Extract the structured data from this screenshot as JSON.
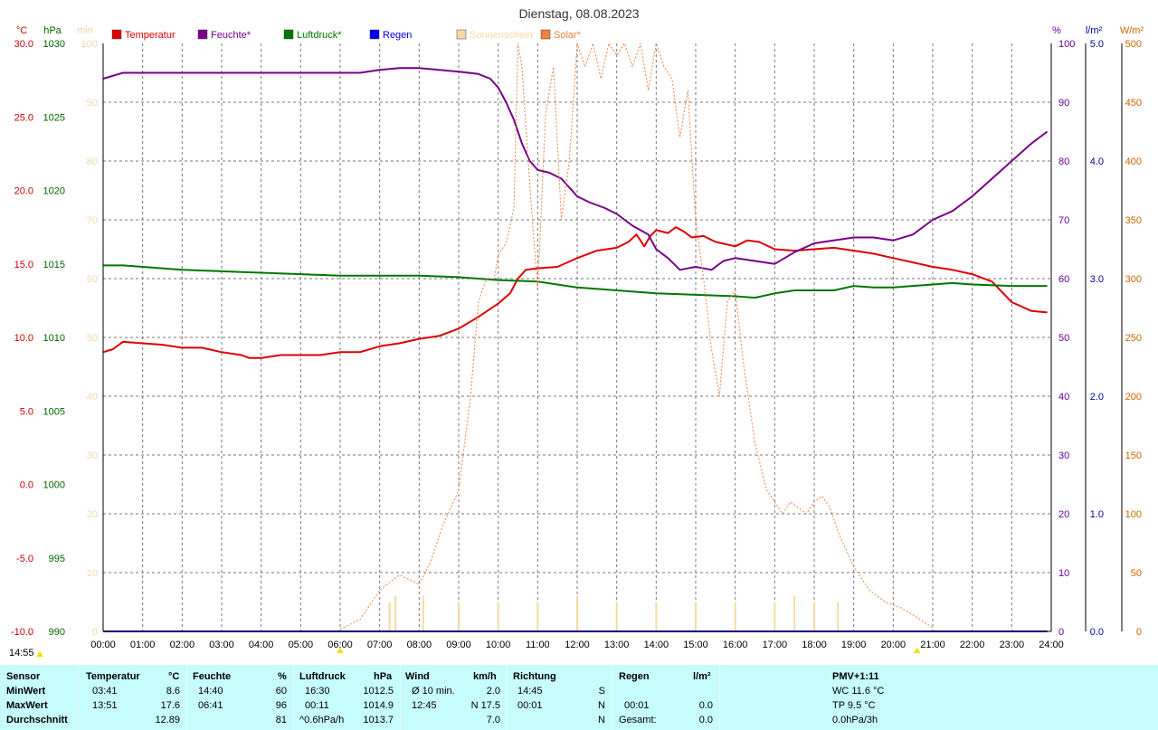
{
  "chart_data": {
    "type": "line",
    "title": "Dienstag, 08.08.2023",
    "x_ticks": [
      "00:00",
      "01:00",
      "02:00",
      "03:00",
      "04:00",
      "05:00",
      "06:00",
      "07:00",
      "08:00",
      "09:00",
      "10:00",
      "11:00",
      "12:00",
      "13:00",
      "14:00",
      "15:00",
      "16:00",
      "17:00",
      "18:00",
      "19:00",
      "20:00",
      "21:00",
      "22:00",
      "23:00",
      "24:00"
    ],
    "axes": {
      "temperature": {
        "unit": "°C",
        "color": "#cc0000",
        "min": -10,
        "max": 30,
        "ticks": [
          "30.0",
          "25.0",
          "20.0",
          "15.0",
          "10.0",
          "5.0",
          "0.0",
          "-5.0",
          "-10.0"
        ]
      },
      "pressure": {
        "unit": "hPa",
        "color": "#006600",
        "min": 990,
        "max": 1030,
        "ticks": [
          "1030",
          "1025",
          "1020",
          "1015",
          "1010",
          "1005",
          "1000",
          "995",
          "990"
        ]
      },
      "sunshine": {
        "unit": "min",
        "color": "#f0d8a8",
        "min": 0,
        "max": 100,
        "ticks": [
          "100",
          "90",
          "80",
          "70",
          "60",
          "50",
          "40",
          "30",
          "20",
          "10",
          "0"
        ]
      },
      "humidity": {
        "unit": "%",
        "color": "#660099",
        "min": 0,
        "max": 100,
        "ticks": [
          "100",
          "90",
          "80",
          "70",
          "60",
          "50",
          "40",
          "30",
          "20",
          "10",
          "0"
        ]
      },
      "rain": {
        "unit": "l/m²",
        "color": "#000099",
        "min": 0,
        "max": 5,
        "ticks": [
          "5.0",
          "4.0",
          "3.0",
          "2.0",
          "1.0",
          "0.0"
        ]
      },
      "solar": {
        "unit": "W/m²",
        "color": "#cc6600",
        "min": 0,
        "max": 500,
        "ticks": [
          "500",
          "450",
          "400",
          "350",
          "300",
          "250",
          "200",
          "150",
          "100",
          "50",
          "0"
        ]
      }
    },
    "legend": [
      {
        "label": "Temperatur",
        "color": "#dd0000"
      },
      {
        "label": "Feuchte*",
        "color": "#770088"
      },
      {
        "label": "Luftdruck*",
        "color": "#007700"
      },
      {
        "label": "Regen",
        "color": "#0000ee"
      },
      {
        "label": "Sonnenschein",
        "color": "#f8d8a0"
      },
      {
        "label": "Solar*",
        "color": "#f08040"
      }
    ],
    "series": [
      {
        "name": "Temperatur",
        "axis": "temperature",
        "color": "#dd0000",
        "points": [
          [
            0,
            9.0
          ],
          [
            0.25,
            9.2
          ],
          [
            0.5,
            9.7
          ],
          [
            1,
            9.6
          ],
          [
            1.5,
            9.5
          ],
          [
            2,
            9.3
          ],
          [
            2.5,
            9.3
          ],
          [
            3,
            9.0
          ],
          [
            3.5,
            8.8
          ],
          [
            3.7,
            8.6
          ],
          [
            4,
            8.6
          ],
          [
            4.5,
            8.8
          ],
          [
            5,
            8.8
          ],
          [
            5.5,
            8.8
          ],
          [
            6,
            9.0
          ],
          [
            6.5,
            9.0
          ],
          [
            7,
            9.4
          ],
          [
            7.5,
            9.6
          ],
          [
            8,
            9.9
          ],
          [
            8.5,
            10.1
          ],
          [
            9,
            10.6
          ],
          [
            9.5,
            11.4
          ],
          [
            10,
            12.3
          ],
          [
            10.3,
            13.0
          ],
          [
            10.5,
            14.0
          ],
          [
            10.7,
            14.6
          ],
          [
            11,
            14.7
          ],
          [
            11.5,
            14.8
          ],
          [
            12,
            15.4
          ],
          [
            12.5,
            15.9
          ],
          [
            13,
            16.1
          ],
          [
            13.3,
            16.5
          ],
          [
            13.5,
            17.0
          ],
          [
            13.7,
            16.2
          ],
          [
            13.85,
            16.9
          ],
          [
            14,
            17.3
          ],
          [
            14.3,
            17.1
          ],
          [
            14.5,
            17.5
          ],
          [
            14.7,
            17.2
          ],
          [
            14.9,
            16.8
          ],
          [
            15.2,
            16.9
          ],
          [
            15.5,
            16.5
          ],
          [
            16,
            16.2
          ],
          [
            16.3,
            16.6
          ],
          [
            16.6,
            16.5
          ],
          [
            17,
            16.0
          ],
          [
            17.5,
            15.9
          ],
          [
            18,
            16.0
          ],
          [
            18.5,
            16.1
          ],
          [
            19,
            15.9
          ],
          [
            19.5,
            15.7
          ],
          [
            20,
            15.4
          ],
          [
            20.5,
            15.1
          ],
          [
            21,
            14.8
          ],
          [
            21.5,
            14.6
          ],
          [
            22,
            14.3
          ],
          [
            22.5,
            13.8
          ],
          [
            23,
            12.4
          ],
          [
            23.5,
            11.8
          ],
          [
            23.9,
            11.7
          ]
        ]
      },
      {
        "name": "Feuchte*",
        "axis": "humidity",
        "color": "#770088",
        "points": [
          [
            0,
            94
          ],
          [
            0.5,
            95
          ],
          [
            1,
            95
          ],
          [
            2,
            95
          ],
          [
            3,
            95
          ],
          [
            4,
            95
          ],
          [
            5,
            95
          ],
          [
            6,
            95
          ],
          [
            6.5,
            95
          ],
          [
            7,
            95.5
          ],
          [
            7.5,
            95.8
          ],
          [
            8,
            95.8
          ],
          [
            8.5,
            95.5
          ],
          [
            9,
            95.2
          ],
          [
            9.5,
            94.8
          ],
          [
            9.8,
            94
          ],
          [
            10,
            92.5
          ],
          [
            10.2,
            90
          ],
          [
            10.4,
            87
          ],
          [
            10.6,
            83
          ],
          [
            10.8,
            80
          ],
          [
            11,
            78.5
          ],
          [
            11.3,
            78
          ],
          [
            11.6,
            77
          ],
          [
            12,
            74
          ],
          [
            12.3,
            73
          ],
          [
            12.7,
            72
          ],
          [
            13,
            71
          ],
          [
            13.4,
            69
          ],
          [
            13.8,
            67.5
          ],
          [
            14,
            65
          ],
          [
            14.3,
            63.5
          ],
          [
            14.6,
            61.5
          ],
          [
            15,
            62
          ],
          [
            15.4,
            61.5
          ],
          [
            15.7,
            63
          ],
          [
            16,
            63.5
          ],
          [
            16.5,
            63
          ],
          [
            17,
            62.5
          ],
          [
            17.5,
            64.5
          ],
          [
            18,
            66
          ],
          [
            18.5,
            66.5
          ],
          [
            19,
            67
          ],
          [
            19.5,
            67
          ],
          [
            20,
            66.5
          ],
          [
            20.5,
            67.5
          ],
          [
            21,
            70
          ],
          [
            21.5,
            71.5
          ],
          [
            22,
            74
          ],
          [
            22.5,
            77
          ],
          [
            23,
            80
          ],
          [
            23.5,
            83
          ],
          [
            23.9,
            85
          ]
        ]
      },
      {
        "name": "Luftdruck*",
        "axis": "pressure",
        "color": "#007700",
        "points": [
          [
            0,
            1014.9
          ],
          [
            0.5,
            1014.9
          ],
          [
            1,
            1014.8
          ],
          [
            2,
            1014.6
          ],
          [
            3,
            1014.5
          ],
          [
            4,
            1014.4
          ],
          [
            5,
            1014.3
          ],
          [
            6,
            1014.2
          ],
          [
            7,
            1014.2
          ],
          [
            8,
            1014.2
          ],
          [
            9,
            1014.1
          ],
          [
            10,
            1013.9
          ],
          [
            11,
            1013.8
          ],
          [
            12,
            1013.4
          ],
          [
            13,
            1013.2
          ],
          [
            14,
            1013.0
          ],
          [
            15,
            1012.9
          ],
          [
            16,
            1012.8
          ],
          [
            16.5,
            1012.7
          ],
          [
            17,
            1013.0
          ],
          [
            17.5,
            1013.2
          ],
          [
            18,
            1013.2
          ],
          [
            18.5,
            1013.2
          ],
          [
            19,
            1013.5
          ],
          [
            19.5,
            1013.4
          ],
          [
            20,
            1013.4
          ],
          [
            21,
            1013.6
          ],
          [
            21.5,
            1013.7
          ],
          [
            22,
            1013.6
          ],
          [
            23,
            1013.5
          ],
          [
            23.9,
            1013.5
          ]
        ]
      },
      {
        "name": "Regen",
        "axis": "rain",
        "color": "#0000ee",
        "points": [
          [
            0,
            0
          ],
          [
            23.9,
            0
          ]
        ]
      },
      {
        "name": "Solar*",
        "axis": "solar",
        "color": "#f08040",
        "dashed": true,
        "points": [
          [
            6,
            2
          ],
          [
            6.5,
            10
          ],
          [
            7,
            35
          ],
          [
            7.5,
            48
          ],
          [
            8,
            40
          ],
          [
            8.3,
            60
          ],
          [
            8.6,
            90
          ],
          [
            9,
            120
          ],
          [
            9.3,
            200
          ],
          [
            9.5,
            280
          ],
          [
            9.7,
            300
          ],
          [
            9.9,
            300
          ],
          [
            10,
            320
          ],
          [
            10.2,
            330
          ],
          [
            10.4,
            360
          ],
          [
            10.5,
            500
          ],
          [
            10.6,
            480
          ],
          [
            10.8,
            380
          ],
          [
            11,
            290
          ],
          [
            11.2,
            440
          ],
          [
            11.4,
            480
          ],
          [
            11.6,
            350
          ],
          [
            11.8,
            400
          ],
          [
            12,
            500
          ],
          [
            12.2,
            480
          ],
          [
            12.4,
            500
          ],
          [
            12.6,
            470
          ],
          [
            12.8,
            500
          ],
          [
            13,
            490
          ],
          [
            13.2,
            500
          ],
          [
            13.4,
            480
          ],
          [
            13.6,
            500
          ],
          [
            13.8,
            460
          ],
          [
            14,
            500
          ],
          [
            14.2,
            480
          ],
          [
            14.4,
            470
          ],
          [
            14.6,
            420
          ],
          [
            14.8,
            460
          ],
          [
            15,
            350
          ],
          [
            15.2,
            300
          ],
          [
            15.4,
            240
          ],
          [
            15.6,
            200
          ],
          [
            15.8,
            280
          ],
          [
            16,
            290
          ],
          [
            16.2,
            230
          ],
          [
            16.5,
            160
          ],
          [
            16.8,
            120
          ],
          [
            17,
            110
          ],
          [
            17.2,
            100
          ],
          [
            17.4,
            110
          ],
          [
            17.6,
            105
          ],
          [
            17.8,
            100
          ],
          [
            18,
            110
          ],
          [
            18.2,
            115
          ],
          [
            18.4,
            105
          ],
          [
            18.6,
            85
          ],
          [
            18.8,
            70
          ],
          [
            19,
            55
          ],
          [
            19.4,
            35
          ],
          [
            19.8,
            25
          ],
          [
            20.2,
            20
          ],
          [
            20.6,
            12
          ],
          [
            21,
            3
          ]
        ]
      },
      {
        "name": "Sonnenschein",
        "axis": "sunshine",
        "color": "#f8d8a0",
        "type": "bar",
        "points": [
          [
            7.25,
            5
          ],
          [
            7.4,
            6
          ],
          [
            8.1,
            6
          ],
          [
            9,
            5
          ],
          [
            10,
            5
          ],
          [
            11,
            5
          ],
          [
            12,
            6
          ],
          [
            13,
            5
          ],
          [
            14,
            5
          ],
          [
            15,
            5
          ],
          [
            16,
            5
          ],
          [
            17,
            5
          ],
          [
            17.5,
            6
          ],
          [
            18,
            5
          ],
          [
            18.6,
            5
          ]
        ]
      }
    ]
  },
  "stats": {
    "headers": {
      "sensor": "Sensor",
      "temp": "Temperatur",
      "temp_unit": "°C",
      "hum": "Feuchte",
      "hum_unit": "%",
      "press": "Luftdruck",
      "press_unit": "hPa",
      "wind": "Wind",
      "wind_unit": "km/h",
      "dir": "Richtung",
      "rain": "Regen",
      "rain_unit": "l/m²",
      "pmv": "PMV+1:11"
    },
    "rows": [
      {
        "label": "MinWert",
        "temp_t": "03:41",
        "temp_v": "8.6",
        "hum_t": "14:40",
        "hum_v": "60",
        "press_t": "16:30",
        "press_v": "1012.5",
        "wind_t": "Ø 10 min.",
        "wind_v": "2.0",
        "dir_t": "14:45",
        "dir_v": "S",
        "rain_t": "",
        "rain_v": "",
        "pmv": "WC 11.6 °C"
      },
      {
        "label": "MaxWert",
        "temp_t": "13:51",
        "temp_v": "17.6",
        "hum_t": "06:41",
        "hum_v": "96",
        "press_t": "00:11",
        "press_v": "1014.9",
        "wind_t": "12:45",
        "wind_v": "N 17.5",
        "dir_t": "00:01",
        "dir_v": "N",
        "rain_t": "00:01",
        "rain_v": "0.0",
        "pmv": "TP 9.5 °C"
      },
      {
        "label": "Durchschnitt",
        "temp_t": "",
        "temp_v": "12.89",
        "hum_t": "",
        "hum_v": "81",
        "press_t": "^0.6hPa/h",
        "press_v": "1013.7",
        "wind_t": "",
        "wind_v": "7.0",
        "dir_t": "",
        "dir_v": "N",
        "rain_t": "Gesamt:",
        "rain_v": "0.0",
        "pmv": "0.0hPa/3h"
      }
    ]
  },
  "clock": "14:55"
}
